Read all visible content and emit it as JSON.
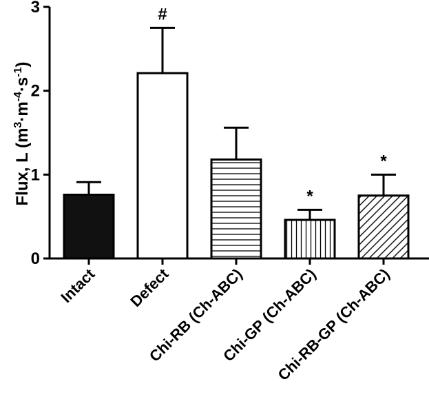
{
  "chart_data": {
    "type": "bar",
    "title": "",
    "xlabel": "",
    "ylabel": {
      "main": "Flux, L (m",
      "sup1": "3",
      "mid1": "·m",
      "sup2": "-4",
      "mid2": "·s",
      "sup3": "-1",
      "end": ")"
    },
    "ylim": [
      0,
      3
    ],
    "yticks": [
      "0",
      "1",
      "2",
      "3"
    ],
    "categories": [
      "Intact",
      "Defect",
      "Chi-RB (Ch-ABC)",
      "Chi-GP (Ch-ABC)",
      "Chi-RB-GP (Ch-ABC)"
    ],
    "values": [
      0.76,
      2.21,
      1.18,
      0.46,
      0.75
    ],
    "errors": [
      0.15,
      0.54,
      0.38,
      0.12,
      0.25
    ],
    "annotations": [
      "",
      "#",
      "",
      "*",
      "*"
    ],
    "fills": [
      "solid-black",
      "white",
      "horizontal-lines",
      "vertical-lines",
      "diagonal-lines"
    ],
    "colors": {
      "bar_stroke": "#000000",
      "solid": "#111111",
      "background": "#ffffff"
    },
    "grid": false,
    "legend": "none"
  }
}
